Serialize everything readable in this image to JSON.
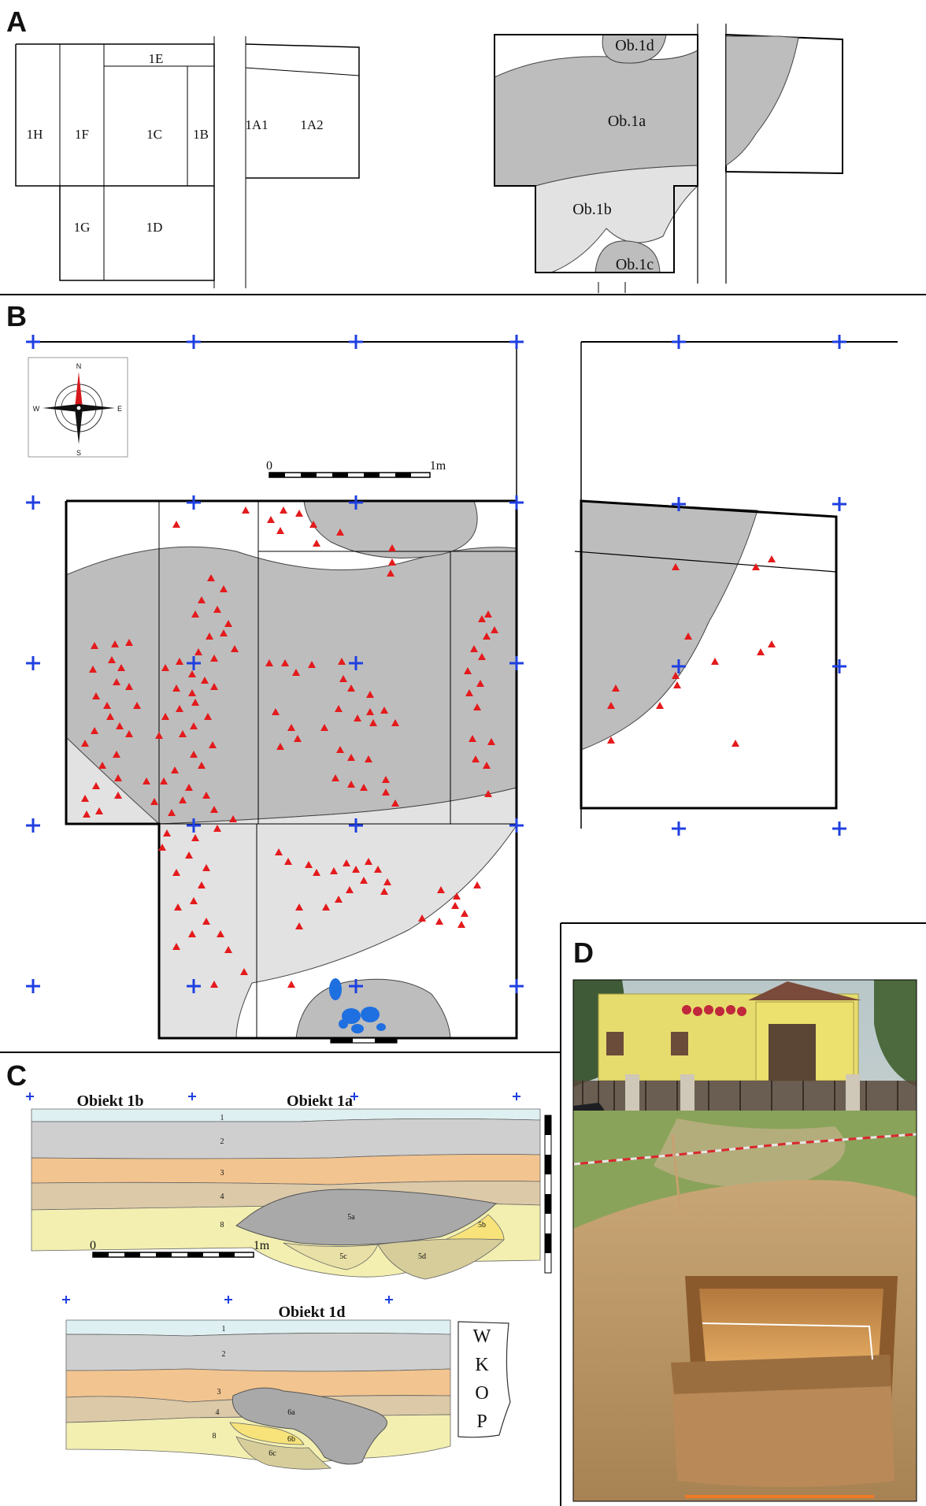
{
  "panels": {
    "a": {
      "label": "A",
      "sections": [
        "1H",
        "1F",
        "1E",
        "1C",
        "1B",
        "1G",
        "1D",
        "1A1",
        "1A2"
      ],
      "objects": [
        "Ob.1d",
        "Ob.1a",
        "Ob.1b",
        "Ob.1c"
      ]
    },
    "b": {
      "label": "B",
      "compass": {
        "n": "N",
        "s": "S",
        "e": "E",
        "w": "W"
      },
      "scale_start": "0",
      "scale_end": "1m"
    },
    "c": {
      "label": "C",
      "profile1_title_left": "Obiekt 1b",
      "profile1_title_right": "Obiekt 1a",
      "profile1_layers": [
        "1",
        "2",
        "3",
        "4",
        "8",
        "5a",
        "5b",
        "5c",
        "5d"
      ],
      "profile2_title": "Obiekt 1d",
      "profile2_layers": [
        "1",
        "2",
        "3",
        "4",
        "8",
        "6a",
        "6b",
        "6c"
      ],
      "scale_start": "0",
      "scale_end": "1m",
      "wkop_letters": [
        "W",
        "K",
        "O",
        "P"
      ]
    },
    "d": {
      "label": "D"
    }
  },
  "colors": {
    "feature_dark": "#bdbdbd",
    "feature_light": "#e2e2e2",
    "finds": "#e41a1c",
    "grid_cross": "#1f3fe0",
    "stones": "#1e6fe0",
    "layer1": "#dff0f2",
    "layer2": "#cfcfcf",
    "layer3": "#f2c48f",
    "layer4": "#dcc9a8",
    "layer8": "#f3efb0"
  }
}
